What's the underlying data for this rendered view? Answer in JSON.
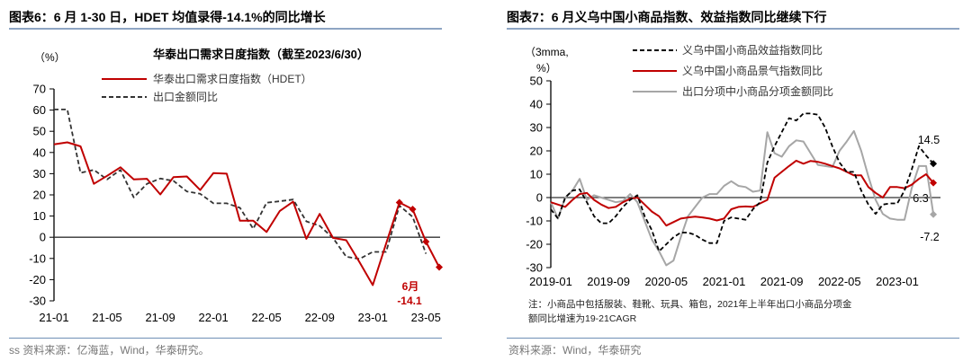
{
  "left": {
    "panel_title": "图表6：6 月 1-30 日，HDET 均值录得-14.1%的同比增长",
    "source": "ss 资料来源：亿海蓝，Wind，华泰研究。"
  },
  "right": {
    "panel_title": "图表7：6 月义乌中国小商品指数、效益指数同比继续下行",
    "note_line1": "注：小商品中包括服装、鞋靴、玩具、箱包，2021年上半年出口小商品分项金",
    "note_line2": "额同比增速为19-21CAGR",
    "source": "资料来源：Wind，华泰研究"
  },
  "chart_data": [
    {
      "type": "line",
      "title": "华泰出口需求日度指数（截至2023/6/30）",
      "ylabel": "（%）",
      "ylim": [
        -30,
        70
      ],
      "yticks": [
        "70",
        "60",
        "50",
        "40",
        "30",
        "20",
        "10",
        "0",
        "-10",
        "-20",
        "-30"
      ],
      "x": [
        "21-01",
        "21-02",
        "21-03",
        "21-04",
        "21-05",
        "21-06",
        "21-07",
        "21-08",
        "21-09",
        "21-10",
        "21-11",
        "21-12",
        "22-01",
        "22-02",
        "22-03",
        "22-04",
        "22-05",
        "22-06",
        "22-07",
        "22-08",
        "22-09",
        "22-10",
        "22-11",
        "22-12",
        "23-01",
        "23-02",
        "23-03",
        "23-04",
        "23-05",
        "23-06"
      ],
      "xticks": [
        "21-01",
        "21-05",
        "21-09",
        "22-01",
        "22-05",
        "22-09",
        "23-01",
        "23-05"
      ],
      "legend_placement": "top-left",
      "grid": false,
      "series": [
        {
          "name": "华泰出口需求日度指数（HDET）",
          "color": "#c00000",
          "style": "solid",
          "values": [
            43.8,
            44.8,
            42.9,
            25.2,
            29,
            33,
            27.3,
            27.6,
            20.2,
            28.4,
            28.7,
            22.3,
            30.3,
            30,
            7.8,
            7.8,
            2.5,
            12.4,
            16.8,
            -0.7,
            11,
            -0.3,
            -1.4,
            -11.8,
            -22.6,
            -3,
            16.4,
            13.2,
            -2.1,
            -14.1
          ],
          "markers_from": "23-03"
        },
        {
          "name": "出口金额同比",
          "color": "#333333",
          "style": "dashed",
          "values": [
            60.3,
            60.3,
            30.4,
            31.8,
            27.3,
            31.8,
            18.8,
            25.2,
            27.7,
            26.6,
            21.6,
            20.5,
            16,
            16,
            13.9,
            4,
            16.3,
            17,
            17.8,
            7.5,
            5.4,
            -0.3,
            -9.2,
            -10.2,
            -6.9,
            -6.9,
            14.9,
            9.6,
            -7.8,
            null
          ]
        }
      ],
      "annotations": [
        {
          "month": "6月",
          "value": "-14.1",
          "color": "#c00000"
        }
      ]
    },
    {
      "type": "line",
      "title": "",
      "ylabel_line1": "（3mma,",
      "ylabel_line2": "%）",
      "ylim": [
        -30,
        50
      ],
      "yticks": [
        "50",
        "40",
        "30",
        "20",
        "10",
        "0",
        "-10",
        "-20",
        "-30"
      ],
      "x_start": "2019-01",
      "x_end": "2023-06",
      "xticks": [
        "2019-01",
        "2019-09",
        "2020-05",
        "2021-01",
        "2021-09",
        "2022-05",
        "2023-01"
      ],
      "legend_placement": "top",
      "grid": false,
      "series": [
        {
          "name": "义乌中国小商品效益指数同比",
          "color": "#000000",
          "style": "dashed",
          "values": [
            -5,
            -9,
            0,
            3,
            3.5,
            -2,
            -8,
            -11,
            -11,
            -8,
            -4,
            -1,
            1,
            -8,
            -14,
            -23,
            -20,
            -17,
            -15,
            -15,
            -16,
            -18,
            -19.5,
            -19.5,
            -10,
            -8.5,
            -9,
            -9.5,
            -5,
            -2,
            15,
            22,
            28,
            34,
            33,
            36,
            36,
            35.5,
            30,
            22,
            15,
            11,
            11,
            3,
            -3,
            -7,
            -3,
            -2.5,
            -2.5,
            3,
            12,
            22,
            18,
            14.5
          ],
          "end_label": "14.5"
        },
        {
          "name": "义乌中国小商品景气指数同比",
          "color": "#c00000",
          "style": "solid",
          "values": [
            -2,
            -3,
            -4,
            -1,
            1.5,
            2,
            -1,
            -3,
            -4.5,
            -4,
            -2,
            -0.5,
            0,
            -3,
            -6,
            -8,
            -12,
            -10.5,
            -9,
            -8.5,
            -8.2,
            -8.5,
            -9,
            -9.8,
            -9,
            -5,
            -4,
            -3.8,
            -4,
            -2.5,
            -1,
            8.5,
            11,
            13.5,
            15.8,
            14.5,
            15.7,
            15.3,
            14.5,
            13.5,
            12.5,
            11,
            9.5,
            9.5,
            4.5,
            2,
            0,
            4.5,
            4.5,
            4,
            5.5,
            8,
            10,
            6.3
          ],
          "end_label": "6.3"
        },
        {
          "name": "出口分项中小商品分项金额同比",
          "color": "#a6a6a6",
          "style": "solid",
          "values": [
            -2,
            -9,
            0,
            3,
            8,
            -1,
            1,
            0,
            -1,
            -2,
            -1.5,
            1.5,
            -2,
            -10,
            -18,
            -23,
            -29,
            -27,
            -17,
            -8,
            -4,
            0,
            1.5,
            1.5,
            5,
            7,
            5,
            4.5,
            2.5,
            3,
            28,
            19,
            17.5,
            22,
            24.5,
            24,
            19,
            14,
            13.5,
            13,
            20,
            24,
            28.5,
            20,
            9,
            -1,
            -7,
            -9,
            -9.5,
            -9.5,
            4,
            13.5,
            13.5,
            -7.2
          ],
          "end_label": "-7.2"
        }
      ]
    }
  ]
}
